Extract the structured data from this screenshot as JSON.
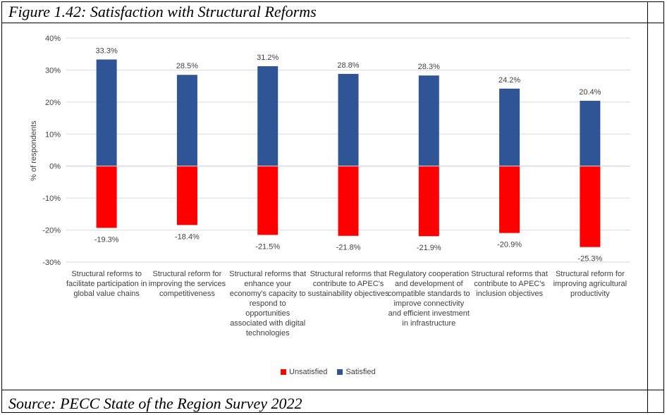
{
  "figure_title": "Figure 1.42: Satisfaction with Structural Reforms",
  "source": "Source: PECC State of the Region Survey 2022",
  "chart_data": {
    "type": "bar",
    "stacked": true,
    "categories": [
      "Structural reforms to facilitate participation in global value chains",
      "Structural reform for improving the services competitiveness",
      "Structural reforms that enhance your economy's capacity to respond to opportunities associated with digital technologies",
      "Structural reforms that contribute to APEC's sustainability objectives",
      "Regulatory cooperation and development of compatible standards to improve connectivity and efficient investment in infrastructure",
      "Structural reforms that contribute to APEC's inclusion objectives",
      "Structural reform for improving agricultural productivity"
    ],
    "series": [
      {
        "name": "Unsatisfied",
        "values": [
          -19.3,
          -18.4,
          -21.5,
          -21.8,
          -21.9,
          -20.9,
          -25.3
        ],
        "labels": [
          "-19.3%",
          "-18.4%",
          "-21.5%",
          "-21.8%",
          "-21.9%",
          "-20.9%",
          "-25.3%"
        ],
        "color": "#ff0000"
      },
      {
        "name": "Satisfied",
        "values": [
          33.3,
          28.5,
          31.2,
          28.8,
          28.3,
          24.2,
          20.4
        ],
        "labels": [
          "33.3%",
          "28.5%",
          "31.2%",
          "28.8%",
          "28.3%",
          "24.2%",
          "20.4%"
        ],
        "color": "#2f5597"
      }
    ],
    "ylabel": "% of respondents",
    "ylim": [
      -30,
      40
    ],
    "yticks": [
      "-30%",
      "-20%",
      "-10%",
      "0%",
      "10%",
      "20%",
      "30%",
      "40%"
    ],
    "grid": true,
    "legend": "bottom"
  }
}
